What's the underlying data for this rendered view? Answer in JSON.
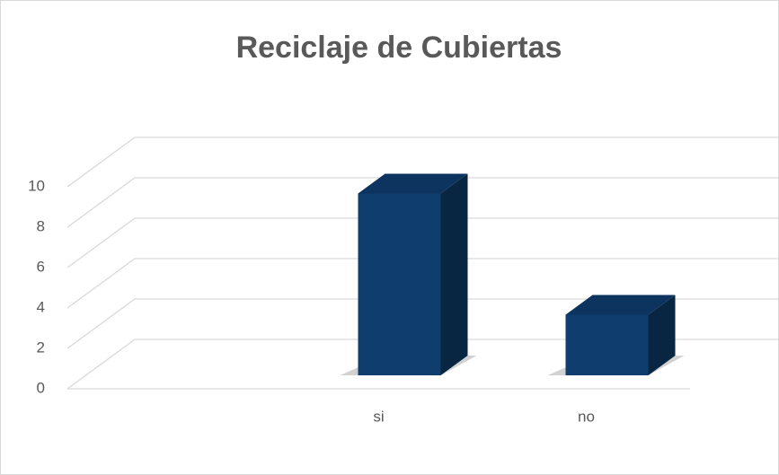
{
  "chart_data": {
    "type": "bar3d",
    "title": "Reciclaje de Cubiertas",
    "categories": [
      null,
      "si",
      "no"
    ],
    "values": [
      null,
      9,
      3
    ],
    "color": "#0e3d6e",
    "ylim": [
      0,
      10
    ],
    "yticks": [
      0,
      2,
      4,
      6,
      8,
      10
    ],
    "grid": true
  }
}
